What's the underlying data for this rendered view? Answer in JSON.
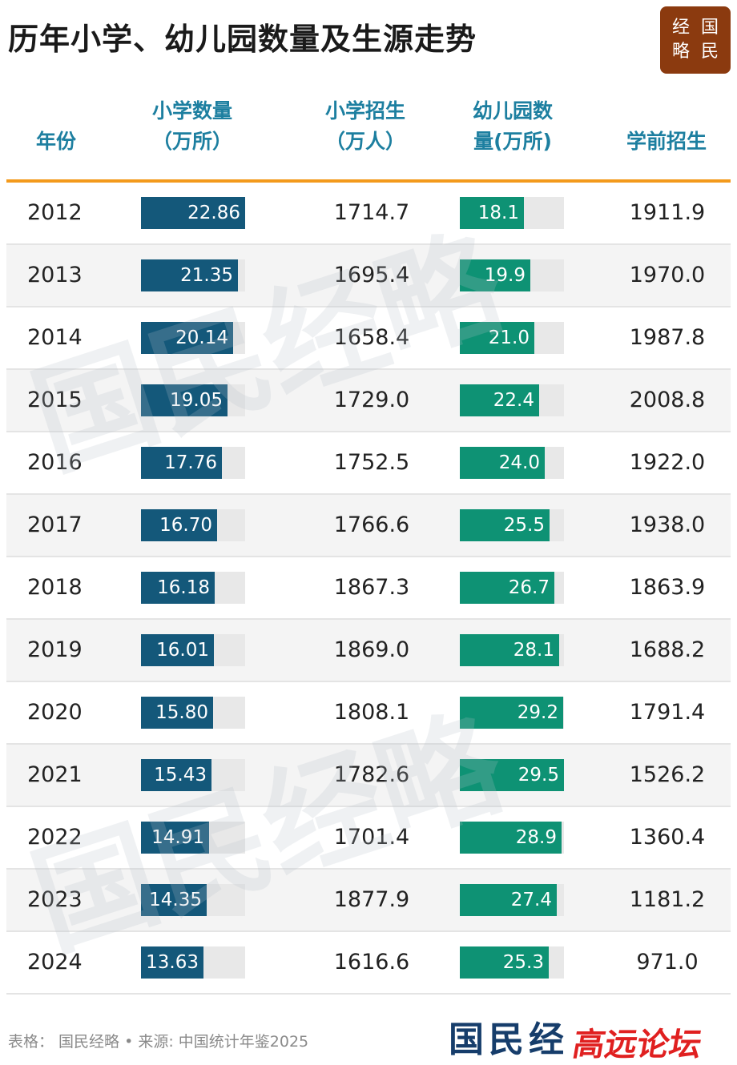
{
  "title": "历年小学、幼儿园数量及生源走势",
  "logo": [
    "经",
    "国",
    "略",
    "民"
  ],
  "headers": {
    "year": "年份",
    "schools": [
      "小学数量",
      "（万所）"
    ],
    "primary_recruit": [
      "小学招生",
      "（万人）"
    ],
    "kindergartens": [
      "幼儿园数",
      "量(万所)"
    ],
    "preschool_recruit": "学前招生"
  },
  "colors": {
    "primary_bar": "#14587a",
    "kindergarten_bar": "#0e9274",
    "header_text": "#1d7fa0",
    "rule": "#f39a1c"
  },
  "chart_data": {
    "type": "table",
    "columns": [
      "年份",
      "小学数量（万所）",
      "小学招生（万人）",
      "幼儿园数量(万所)",
      "学前招生"
    ],
    "bar_max": {
      "primary_schools": 22.86,
      "kindergartens": 29.5
    },
    "rows": [
      {
        "year": "2012",
        "primary_schools": 22.86,
        "primary_schools_label": "22.86",
        "primary_recruit": "1714.7",
        "kindergartens": 18.1,
        "kindergartens_label": "18.1",
        "preschool_recruit": "1911.9"
      },
      {
        "year": "2013",
        "primary_schools": 21.35,
        "primary_schools_label": "21.35",
        "primary_recruit": "1695.4",
        "kindergartens": 19.9,
        "kindergartens_label": "19.9",
        "preschool_recruit": "1970.0"
      },
      {
        "year": "2014",
        "primary_schools": 20.14,
        "primary_schools_label": "20.14",
        "primary_recruit": "1658.4",
        "kindergartens": 21.0,
        "kindergartens_label": "21.0",
        "preschool_recruit": "1987.8"
      },
      {
        "year": "2015",
        "primary_schools": 19.05,
        "primary_schools_label": "19.05",
        "primary_recruit": "1729.0",
        "kindergartens": 22.4,
        "kindergartens_label": "22.4",
        "preschool_recruit": "2008.8"
      },
      {
        "year": "2016",
        "primary_schools": 17.76,
        "primary_schools_label": "17.76",
        "primary_recruit": "1752.5",
        "kindergartens": 24.0,
        "kindergartens_label": "24.0",
        "preschool_recruit": "1922.0"
      },
      {
        "year": "2017",
        "primary_schools": 16.7,
        "primary_schools_label": "16.70",
        "primary_recruit": "1766.6",
        "kindergartens": 25.5,
        "kindergartens_label": "25.5",
        "preschool_recruit": "1938.0"
      },
      {
        "year": "2018",
        "primary_schools": 16.18,
        "primary_schools_label": "16.18",
        "primary_recruit": "1867.3",
        "kindergartens": 26.7,
        "kindergartens_label": "26.7",
        "preschool_recruit": "1863.9"
      },
      {
        "year": "2019",
        "primary_schools": 16.01,
        "primary_schools_label": "16.01",
        "primary_recruit": "1869.0",
        "kindergartens": 28.1,
        "kindergartens_label": "28.1",
        "preschool_recruit": "1688.2"
      },
      {
        "year": "2020",
        "primary_schools": 15.8,
        "primary_schools_label": "15.80",
        "primary_recruit": "1808.1",
        "kindergartens": 29.2,
        "kindergartens_label": "29.2",
        "preschool_recruit": "1791.4"
      },
      {
        "year": "2021",
        "primary_schools": 15.43,
        "primary_schools_label": "15.43",
        "primary_recruit": "1782.6",
        "kindergartens": 29.5,
        "kindergartens_label": "29.5",
        "preschool_recruit": "1526.2"
      },
      {
        "year": "2022",
        "primary_schools": 14.91,
        "primary_schools_label": "14.91",
        "primary_recruit": "1701.4",
        "kindergartens": 28.9,
        "kindergartens_label": "28.9",
        "preschool_recruit": "1360.4"
      },
      {
        "year": "2023",
        "primary_schools": 14.35,
        "primary_schools_label": "14.35",
        "primary_recruit": "1877.9",
        "kindergartens": 27.4,
        "kindergartens_label": "27.4",
        "preschool_recruit": "1181.2"
      },
      {
        "year": "2024",
        "primary_schools": 13.63,
        "primary_schools_label": "13.63",
        "primary_recruit": "1616.6",
        "kindergartens": 25.3,
        "kindergartens_label": "25.3",
        "preschool_recruit": "971.0"
      }
    ]
  },
  "watermark": "国民经略",
  "footer": {
    "source": "表格： 国民经略 • 来源: 中国统计年鉴2025",
    "brand": "国民经",
    "brand_overlay": "高远论坛"
  }
}
